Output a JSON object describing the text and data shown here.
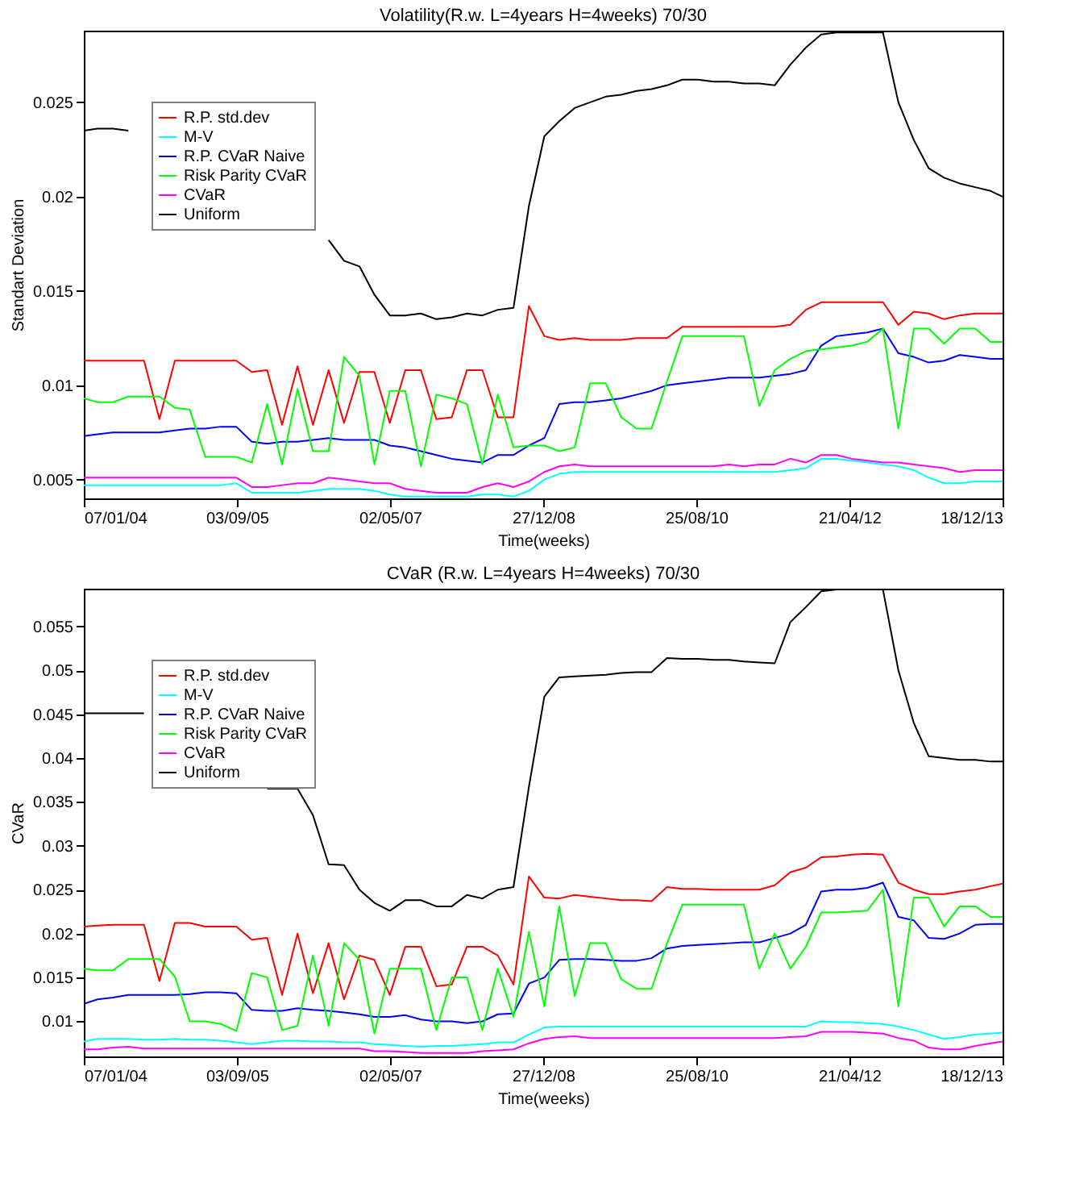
{
  "chart_data": [
    {
      "type": "line",
      "title": "Volatility(R.w. L=4years H=4weeks) 70/30",
      "xlabel": "Time(weeks)",
      "ylabel": "Standart Deviation",
      "legend": "top left",
      "x": [
        "2004-01-07",
        "2004-03",
        "2004-05",
        "2004-07",
        "2004-09",
        "2004-11",
        "2005-01",
        "2005-03",
        "2005-05",
        "2005-07",
        "2005-09",
        "2005-11",
        "2006-01",
        "2006-03",
        "2006-05",
        "2006-07",
        "2006-09",
        "2006-11",
        "2007-01",
        "2007-03",
        "2007-05",
        "2007-07",
        "2007-09",
        "2007-11",
        "2008-01",
        "2008-03",
        "2008-05",
        "2008-07",
        "2008-09",
        "2008-11",
        "2009-01",
        "2009-03",
        "2009-05",
        "2009-07",
        "2009-09",
        "2009-11",
        "2010-01",
        "2010-03",
        "2010-05",
        "2010-07",
        "2010-09",
        "2010-11",
        "2011-01",
        "2011-03",
        "2011-05",
        "2011-07",
        "2011-09",
        "2011-11",
        "2012-01",
        "2012-03",
        "2012-05",
        "2012-07",
        "2012-09",
        "2012-11",
        "2013-01",
        "2013-03",
        "2013-05",
        "2013-07",
        "2013-09",
        "2013-11",
        "2013-12-18"
      ],
      "xlim": [
        "2004-01-07",
        "2013-12-18"
      ],
      "xticks": [
        {
          "value": "2004-01-07",
          "label": "07/01/04"
        },
        {
          "value": "2005-09-03",
          "label": "03/09/05"
        },
        {
          "value": "2007-05-02",
          "label": "02/05/07"
        },
        {
          "value": "2008-12-27",
          "label": "27/12/08"
        },
        {
          "value": "2010-08-25",
          "label": "25/08/10"
        },
        {
          "value": "2012-04-21",
          "label": "21/04/12"
        },
        {
          "value": "2013-12-18",
          "label": "18/12/13"
        }
      ],
      "ylim": [
        0.004,
        0.0288
      ],
      "yticks": [
        0.005,
        0.01,
        0.015,
        0.02,
        0.025
      ],
      "series": [
        {
          "name": "R.P. std.dev",
          "color": "#ff0000",
          "values": [
            0.0113,
            0.0113,
            0.0113,
            0.0113,
            0.0113,
            0.0082,
            0.0113,
            0.0113,
            0.0113,
            0.0113,
            0.0113,
            0.0107,
            0.0108,
            0.0079,
            0.011,
            0.0079,
            0.0108,
            0.008,
            0.0107,
            0.0107,
            0.008,
            0.0108,
            0.0108,
            0.0082,
            0.0083,
            0.0108,
            0.0108,
            0.0083,
            0.0083,
            0.0142,
            0.0126,
            0.0124,
            0.0125,
            0.0124,
            0.0124,
            0.0124,
            0.0125,
            0.0125,
            0.0125,
            0.0131,
            0.0131,
            0.0131,
            0.0131,
            0.0131,
            0.0131,
            0.0131,
            0.0132,
            0.014,
            0.0144,
            0.0144,
            0.0144,
            0.0144,
            0.0144,
            0.0132,
            0.0139,
            0.0138,
            0.0135,
            0.0137,
            0.0138,
            0.0138,
            0.0138
          ]
        },
        {
          "name": "M-V",
          "color": "#00ffff",
          "values": [
            0.0047,
            0.0047,
            0.0047,
            0.0047,
            0.0047,
            0.0047,
            0.0047,
            0.0047,
            0.0047,
            0.0047,
            0.0048,
            0.0043,
            0.0043,
            0.0043,
            0.0043,
            0.0044,
            0.0045,
            0.0045,
            0.0045,
            0.0044,
            0.0042,
            0.0041,
            0.0041,
            0.0041,
            0.0041,
            0.0041,
            0.0042,
            0.0042,
            0.0041,
            0.0044,
            0.005,
            0.0053,
            0.0054,
            0.0054,
            0.0054,
            0.0054,
            0.0054,
            0.0054,
            0.0054,
            0.0054,
            0.0054,
            0.0054,
            0.0054,
            0.0054,
            0.0054,
            0.0054,
            0.0055,
            0.0056,
            0.0061,
            0.0061,
            0.006,
            0.0059,
            0.0058,
            0.0057,
            0.0055,
            0.0051,
            0.0048,
            0.0048,
            0.0049,
            0.0049,
            0.0049
          ]
        },
        {
          "name": "R.P. CVaR Naive",
          "color": "#0000ff",
          "values": [
            0.0073,
            0.0074,
            0.0075,
            0.0075,
            0.0075,
            0.0075,
            0.0076,
            0.0077,
            0.0077,
            0.0078,
            0.0078,
            0.007,
            0.0069,
            0.007,
            0.007,
            0.0071,
            0.0072,
            0.0071,
            0.0071,
            0.0071,
            0.0068,
            0.0067,
            0.0065,
            0.0063,
            0.0061,
            0.006,
            0.0059,
            0.0063,
            0.0063,
            0.0068,
            0.0072,
            0.009,
            0.0091,
            0.0091,
            0.0092,
            0.0093,
            0.0095,
            0.0097,
            0.01,
            0.0101,
            0.0102,
            0.0103,
            0.0104,
            0.0104,
            0.0104,
            0.0105,
            0.0106,
            0.0108,
            0.0121,
            0.0126,
            0.0127,
            0.0128,
            0.013,
            0.0117,
            0.0115,
            0.0112,
            0.0113,
            0.0116,
            0.0115,
            0.0114,
            0.0114
          ]
        },
        {
          "name": "Risk Parity CVaR",
          "color": "#00ff00",
          "values": [
            0.0093,
            0.0091,
            0.0091,
            0.0094,
            0.0094,
            0.0094,
            0.0088,
            0.0087,
            0.0062,
            0.0062,
            0.0062,
            0.0059,
            0.009,
            0.0058,
            0.0098,
            0.0065,
            0.0065,
            0.0115,
            0.0105,
            0.0058,
            0.0097,
            0.0097,
            0.0057,
            0.0095,
            0.0093,
            0.009,
            0.0058,
            0.0095,
            0.0067,
            0.0068,
            0.0068,
            0.0065,
            0.0067,
            0.0101,
            0.0101,
            0.0083,
            0.0077,
            0.0077,
            0.0102,
            0.0126,
            0.0126,
            0.0126,
            0.0126,
            0.0126,
            0.0089,
            0.0108,
            0.0114,
            0.0118,
            0.0119,
            0.012,
            0.0121,
            0.0123,
            0.013,
            0.0077,
            0.013,
            0.013,
            0.0122,
            0.013,
            0.013,
            0.0123,
            0.0123
          ]
        },
        {
          "name": "CVaR",
          "color": "#ff00ff",
          "values": [
            0.0051,
            0.0051,
            0.0051,
            0.0051,
            0.0051,
            0.0051,
            0.0051,
            0.0051,
            0.0051,
            0.0051,
            0.0051,
            0.0046,
            0.0046,
            0.0047,
            0.0048,
            0.0048,
            0.0051,
            0.005,
            0.0049,
            0.0048,
            0.0048,
            0.0045,
            0.0044,
            0.0043,
            0.0043,
            0.0043,
            0.0046,
            0.0048,
            0.0046,
            0.0049,
            0.0054,
            0.0057,
            0.0058,
            0.0057,
            0.0057,
            0.0057,
            0.0057,
            0.0057,
            0.0057,
            0.0057,
            0.0057,
            0.0057,
            0.0058,
            0.0057,
            0.0058,
            0.0058,
            0.0061,
            0.0059,
            0.0063,
            0.0063,
            0.0061,
            0.006,
            0.0059,
            0.0059,
            0.0058,
            0.0057,
            0.0056,
            0.0054,
            0.0055,
            0.0055,
            0.0055
          ]
        },
        {
          "name": "Uniform",
          "color": "#000000",
          "values": [
            0.0235,
            0.0236,
            0.0236,
            0.0235,
            null,
            null,
            null,
            null,
            null,
            null,
            null,
            null,
            null,
            null,
            null,
            null,
            0.0177,
            0.0166,
            0.0163,
            0.0148,
            0.0137,
            0.0137,
            0.0138,
            0.0135,
            0.0136,
            0.0138,
            0.0137,
            0.014,
            0.0141,
            0.0195,
            0.0232,
            0.024,
            0.0247,
            0.025,
            0.0253,
            0.0254,
            0.0256,
            0.0257,
            0.0259,
            0.0262,
            0.0262,
            0.0261,
            0.0261,
            0.026,
            0.026,
            0.0259,
            0.027,
            0.0279,
            0.0286,
            0.0287,
            0.0287,
            0.0287,
            0.0287,
            0.025,
            0.023,
            0.0215,
            0.021,
            0.0207,
            0.0205,
            0.0203,
            0.02
          ]
        }
      ]
    },
    {
      "type": "line",
      "title": "CVaR   (R.w. L=4years H=4weeks) 70/30",
      "xlabel": "Time(weeks)",
      "ylabel": "CVaR",
      "legend": "top left",
      "x": [
        "2004-01-07",
        "2004-03",
        "2004-05",
        "2004-07",
        "2004-09",
        "2004-11",
        "2005-01",
        "2005-03",
        "2005-05",
        "2005-07",
        "2005-09",
        "2005-11",
        "2006-01",
        "2006-03",
        "2006-05",
        "2006-07",
        "2006-09",
        "2006-11",
        "2007-01",
        "2007-03",
        "2007-05",
        "2007-07",
        "2007-09",
        "2007-11",
        "2008-01",
        "2008-03",
        "2008-05",
        "2008-07",
        "2008-09",
        "2008-11",
        "2009-01",
        "2009-03",
        "2009-05",
        "2009-07",
        "2009-09",
        "2009-11",
        "2010-01",
        "2010-03",
        "2010-05",
        "2010-07",
        "2010-09",
        "2010-11",
        "2011-01",
        "2011-03",
        "2011-05",
        "2011-07",
        "2011-09",
        "2011-11",
        "2012-01",
        "2012-03",
        "2012-05",
        "2012-07",
        "2012-09",
        "2012-11",
        "2013-01",
        "2013-03",
        "2013-05",
        "2013-07",
        "2013-09",
        "2013-11",
        "2013-12-18"
      ],
      "xlim": [
        "2004-01-07",
        "2013-12-18"
      ],
      "xticks": [
        {
          "value": "2004-01-07",
          "label": "07/01/04"
        },
        {
          "value": "2005-09-03",
          "label": "03/09/05"
        },
        {
          "value": "2007-05-02",
          "label": "02/05/07"
        },
        {
          "value": "2008-12-27",
          "label": "27/12/08"
        },
        {
          "value": "2010-08-25",
          "label": "25/08/10"
        },
        {
          "value": "2012-04-21",
          "label": "21/04/12"
        },
        {
          "value": "2013-12-18",
          "label": "18/12/13"
        }
      ],
      "ylim": [
        0.006,
        0.0593
      ],
      "yticks": [
        0.01,
        0.015,
        0.02,
        0.025,
        0.03,
        0.035,
        0.04,
        0.045,
        0.05,
        0.055
      ],
      "series": [
        {
          "name": "R.P. std.dev",
          "color": "#ff0000",
          "values": [
            0.0208,
            0.0209,
            0.021,
            0.021,
            0.021,
            0.0146,
            0.0212,
            0.0212,
            0.0208,
            0.0208,
            0.0208,
            0.0193,
            0.0195,
            0.013,
            0.02,
            0.0132,
            0.0189,
            0.0125,
            0.0175,
            0.017,
            0.013,
            0.0185,
            0.0185,
            0.014,
            0.0142,
            0.0185,
            0.0185,
            0.0175,
            0.0142,
            0.0265,
            0.0241,
            0.024,
            0.0244,
            0.0242,
            0.024,
            0.0238,
            0.0238,
            0.0237,
            0.0253,
            0.0251,
            0.0251,
            0.025,
            0.025,
            0.025,
            0.025,
            0.0255,
            0.027,
            0.0275,
            0.0287,
            0.0288,
            0.029,
            0.0291,
            0.029,
            0.0258,
            0.025,
            0.0245,
            0.0245,
            0.0248,
            0.025,
            0.0254,
            0.0257
          ]
        },
        {
          "name": "M-V",
          "color": "#00ffff",
          "values": [
            0.0077,
            0.008,
            0.008,
            0.008,
            0.0079,
            0.0079,
            0.008,
            0.0079,
            0.0079,
            0.0078,
            0.0076,
            0.0074,
            0.0076,
            0.0078,
            0.0078,
            0.0077,
            0.0077,
            0.0076,
            0.0076,
            0.0074,
            0.0073,
            0.0072,
            0.0071,
            0.0072,
            0.0072,
            0.0073,
            0.0074,
            0.0076,
            0.0076,
            0.0085,
            0.0093,
            0.0094,
            0.0094,
            0.0094,
            0.0094,
            0.0094,
            0.0094,
            0.0094,
            0.0094,
            0.0094,
            0.0094,
            0.0094,
            0.0094,
            0.0094,
            0.0094,
            0.0094,
            0.0094,
            0.0094,
            0.01,
            0.0099,
            0.0099,
            0.0098,
            0.0097,
            0.0094,
            0.009,
            0.0085,
            0.008,
            0.0082,
            0.0085,
            0.0086,
            0.0087
          ]
        },
        {
          "name": "R.P. CVaR Naive",
          "color": "#0000ff",
          "values": [
            0.012,
            0.0125,
            0.0127,
            0.013,
            0.013,
            0.013,
            0.013,
            0.0131,
            0.0133,
            0.0133,
            0.0132,
            0.0113,
            0.0112,
            0.0112,
            0.0115,
            0.0113,
            0.0112,
            0.011,
            0.0108,
            0.0105,
            0.0105,
            0.0107,
            0.0102,
            0.01,
            0.01,
            0.0098,
            0.01,
            0.0108,
            0.0109,
            0.0143,
            0.015,
            0.017,
            0.0171,
            0.0171,
            0.017,
            0.0169,
            0.0169,
            0.0172,
            0.0183,
            0.0186,
            0.0187,
            0.0188,
            0.0189,
            0.019,
            0.019,
            0.0195,
            0.02,
            0.021,
            0.0248,
            0.025,
            0.025,
            0.0252,
            0.0258,
            0.0219,
            0.0215,
            0.0195,
            0.0194,
            0.02,
            0.021,
            0.0211,
            0.0211
          ]
        },
        {
          "name": "Risk Parity CVaR",
          "color": "#00ff00",
          "values": [
            0.016,
            0.0158,
            0.0158,
            0.0171,
            0.0171,
            0.0171,
            0.0151,
            0.01,
            0.01,
            0.0097,
            0.0089,
            0.0155,
            0.015,
            0.009,
            0.0095,
            0.0175,
            0.0095,
            0.0189,
            0.017,
            0.0086,
            0.016,
            0.016,
            0.016,
            0.009,
            0.015,
            0.015,
            0.009,
            0.016,
            0.0105,
            0.0202,
            0.0117,
            0.0231,
            0.0129,
            0.0189,
            0.0189,
            0.0148,
            0.0137,
            0.0137,
            0.0189,
            0.0233,
            0.0233,
            0.0233,
            0.0233,
            0.0233,
            0.016,
            0.02,
            0.016,
            0.0185,
            0.0224,
            0.0224,
            0.0225,
            0.0226,
            0.025,
            0.0117,
            0.0241,
            0.0241,
            0.0208,
            0.0231,
            0.0231,
            0.0219,
            0.0219
          ]
        },
        {
          "name": "CVaR",
          "color": "#ff00ff",
          "values": [
            0.0068,
            0.0068,
            0.007,
            0.0071,
            0.0069,
            0.0069,
            0.0069,
            0.0069,
            0.0069,
            0.0069,
            0.0069,
            0.0069,
            0.0069,
            0.0069,
            0.0069,
            0.0069,
            0.0069,
            0.0069,
            0.0069,
            0.0066,
            0.0066,
            0.0065,
            0.0064,
            0.0064,
            0.0064,
            0.0064,
            0.0066,
            0.0067,
            0.0068,
            0.0075,
            0.008,
            0.0082,
            0.0083,
            0.0081,
            0.0081,
            0.0081,
            0.0081,
            0.0081,
            0.0081,
            0.0081,
            0.0081,
            0.0081,
            0.0081,
            0.0081,
            0.0081,
            0.0081,
            0.0082,
            0.0083,
            0.0088,
            0.0088,
            0.0088,
            0.0087,
            0.0086,
            0.0081,
            0.0078,
            0.007,
            0.0068,
            0.0068,
            0.0072,
            0.0075,
            0.0077
          ]
        },
        {
          "name": "Uniform",
          "color": "#000000",
          "values": [
            0.0451,
            0.0451,
            0.0451,
            0.0451,
            0.0451,
            null,
            null,
            null,
            null,
            null,
            null,
            null,
            0.0365,
            0.0365,
            0.0365,
            0.0335,
            0.0279,
            0.0278,
            0.025,
            0.0235,
            0.0226,
            0.0238,
            0.0238,
            0.0231,
            0.0231,
            0.0244,
            0.024,
            0.025,
            0.0253,
            0.0367,
            0.047,
            0.0492,
            0.0493,
            0.0494,
            0.0495,
            0.0497,
            0.0498,
            0.0498,
            0.0514,
            0.0513,
            0.0513,
            0.0512,
            0.0512,
            0.051,
            0.0509,
            0.0508,
            0.0555,
            0.0572,
            0.059,
            0.0592,
            0.0592,
            0.0592,
            0.0592,
            0.05,
            0.044,
            0.0402,
            0.04,
            0.0398,
            0.0398,
            0.0396,
            0.0396
          ]
        }
      ]
    }
  ]
}
